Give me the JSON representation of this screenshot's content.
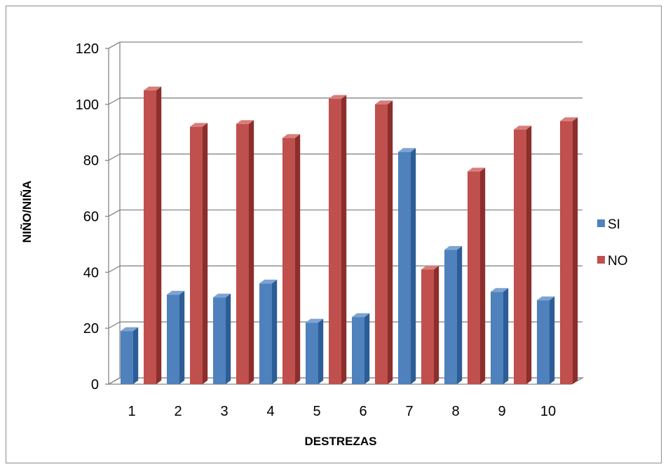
{
  "chart_data": {
    "type": "bar",
    "title": "",
    "xlabel": "DESTREZAS",
    "ylabel": "NIÑO/NIÑA",
    "ylim": [
      0,
      120
    ],
    "yticks": [
      "0",
      "20",
      "40",
      "60",
      "80",
      "100",
      "120"
    ],
    "categories": [
      "1",
      "2",
      "3",
      "4",
      "5",
      "6",
      "7",
      "8",
      "9",
      "10"
    ],
    "series": [
      {
        "name": "SI",
        "values": [
          19,
          32,
          31,
          36,
          22,
          24,
          83,
          48,
          33,
          30
        ]
      },
      {
        "name": "NO",
        "values": [
          105,
          92,
          93,
          88,
          102,
          100,
          41,
          76,
          91,
          94
        ]
      }
    ],
    "grid": true,
    "legend_position": "right",
    "style": "3d-clustered-column"
  },
  "colors": {
    "SI": {
      "front": "#4f81bd",
      "side": "#2c5d96",
      "top": "#7ea3d3"
    },
    "NO": {
      "front": "#c0504d",
      "side": "#8b2e2c",
      "top": "#d77d7a"
    },
    "grid": "#868686",
    "frame": "#8c8c8c"
  }
}
